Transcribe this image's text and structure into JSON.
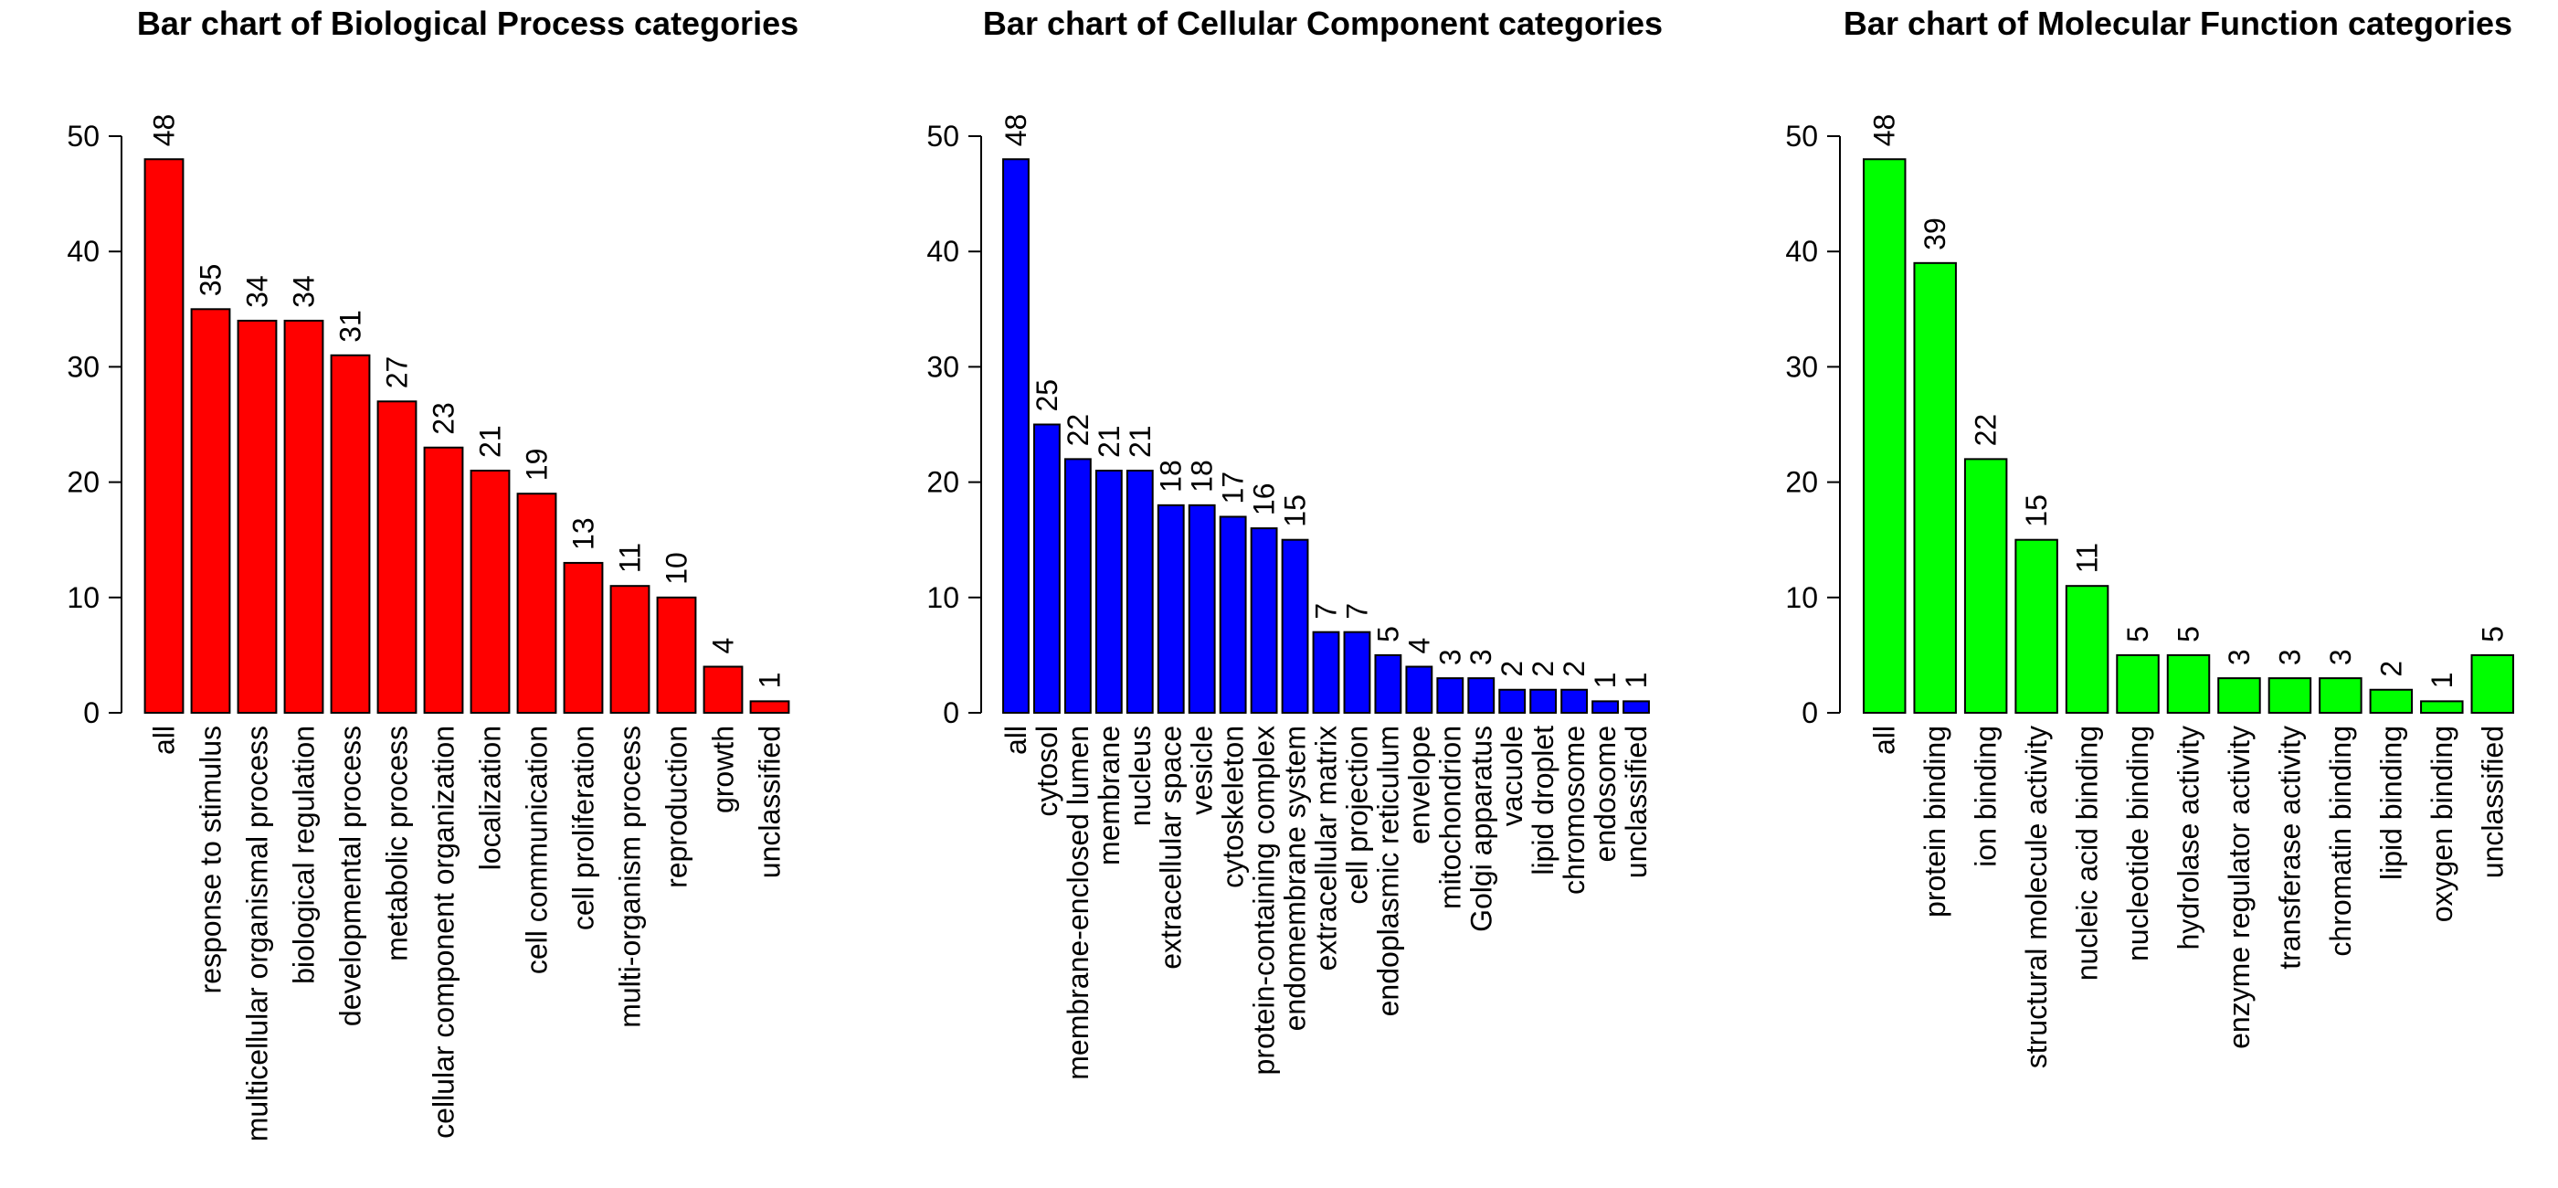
{
  "chart_data": [
    {
      "type": "bar",
      "title": "Bar chart of Biological Process categories",
      "color": "#ff0000",
      "categories": [
        "all",
        "response to stimulus",
        "multicellular organismal process",
        "biological regulation",
        "developmental process",
        "metabolic process",
        "cellular component organization",
        "localization",
        "cell communication",
        "cell proliferation",
        "multi-organism process",
        "reproduction",
        "growth",
        "unclassified"
      ],
      "values": [
        48,
        35,
        34,
        34,
        31,
        27,
        23,
        21,
        19,
        13,
        11,
        10,
        4,
        1
      ],
      "ylim": [
        0,
        50
      ],
      "yticks": [
        0,
        10,
        20,
        30,
        40,
        50
      ],
      "xlabel": "",
      "ylabel": "",
      "grid": false,
      "legend": "none"
    },
    {
      "type": "bar",
      "title": "Bar chart of Cellular Component categories",
      "color": "#0000ff",
      "categories": [
        "all",
        "cytosol",
        "membrane-enclosed lumen",
        "membrane",
        "nucleus",
        "extracellular space",
        "vesicle",
        "cytoskeleton",
        "protein-containing complex",
        "endomembrane system",
        "extracellular matrix",
        "cell projection",
        "endoplasmic reticulum",
        "envelope",
        "mitochondrion",
        "Golgi apparatus",
        "vacuole",
        "lipid droplet",
        "chromosome",
        "endosome",
        "unclassified"
      ],
      "values": [
        48,
        25,
        22,
        21,
        21,
        18,
        18,
        17,
        16,
        15,
        7,
        7,
        5,
        4,
        3,
        3,
        2,
        2,
        2,
        1,
        1
      ],
      "ylim": [
        0,
        50
      ],
      "yticks": [
        0,
        10,
        20,
        30,
        40,
        50
      ],
      "xlabel": "",
      "ylabel": "",
      "grid": false,
      "legend": "none"
    },
    {
      "type": "bar",
      "title": "Bar chart of Molecular Function categories",
      "color": "#00ff00",
      "categories": [
        "all",
        "protein binding",
        "ion binding",
        "structural molecule activity",
        "nucleic acid binding",
        "nucleotide binding",
        "hydrolase activity",
        "enzyme regulator activity",
        "transferase activity",
        "chromatin binding",
        "lipid binding",
        "oxygen binding",
        "unclassified"
      ],
      "values": [
        48,
        39,
        22,
        15,
        11,
        5,
        5,
        3,
        3,
        3,
        2,
        1,
        5
      ],
      "ylim": [
        0,
        50
      ],
      "yticks": [
        0,
        10,
        20,
        30,
        40,
        50
      ],
      "xlabel": "",
      "ylabel": "",
      "grid": false,
      "legend": "none"
    }
  ]
}
